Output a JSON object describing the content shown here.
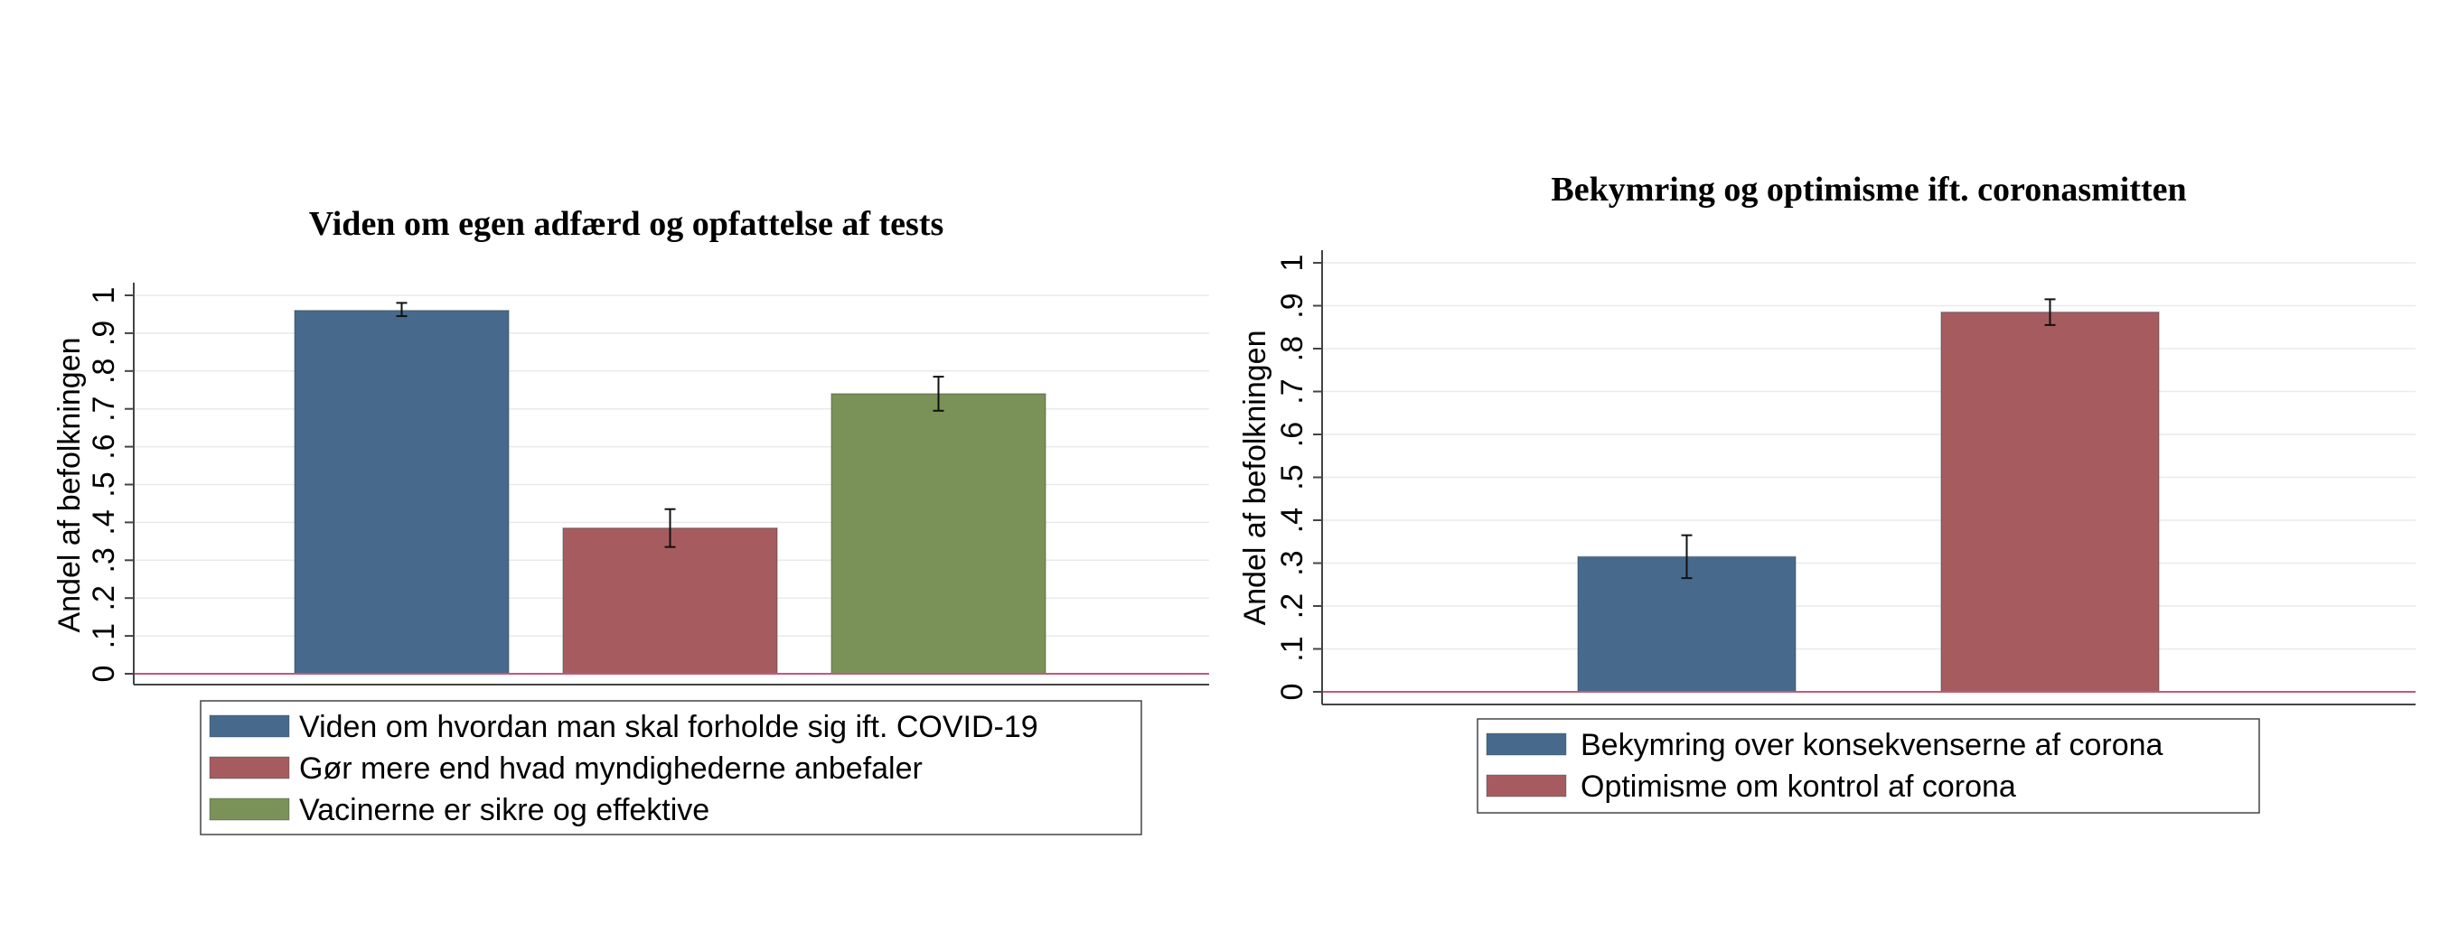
{
  "chart_data": [
    {
      "type": "bar",
      "title": "Viden om egen adfærd og opfattelse af tests",
      "ylabel": "Andel af befolkningen",
      "xlabel": "",
      "ylim": [
        0,
        1
      ],
      "yticks": [
        "0",
        ".1",
        ".2",
        ".3",
        ".4",
        ".5",
        ".6",
        ".7",
        ".8",
        ".9",
        "1"
      ],
      "grid": true,
      "legend_position": "bottom",
      "series": [
        {
          "name": "Viden om hvordan man skal forholde sig ift. COVID-19",
          "value": 0.96,
          "ci": [
            0.945,
            0.98
          ],
          "color": "#476A8C"
        },
        {
          "name": "Gør mere end hvad myndighederne anbefaler",
          "value": 0.385,
          "ci": [
            0.335,
            0.435
          ],
          "color": "#A65C5F"
        },
        {
          "name": "Vacinerne er sikre og effektive",
          "value": 0.74,
          "ci": [
            0.695,
            0.785
          ],
          "color": "#7A9158"
        }
      ]
    },
    {
      "type": "bar",
      "title": "Bekymring og optimisme ift. coronasmitten",
      "ylabel": "Andel af befolkningen",
      "xlabel": "",
      "ylim": [
        0,
        1
      ],
      "yticks": [
        "0",
        ".1",
        ".2",
        ".3",
        ".4",
        ".5",
        ".6",
        ".7",
        ".8",
        ".9",
        "1"
      ],
      "grid": true,
      "legend_position": "bottom",
      "series": [
        {
          "name": "Bekymring over konsekvenserne af corona",
          "value": 0.315,
          "ci": [
            0.265,
            0.365
          ],
          "color": "#476A8C"
        },
        {
          "name": "Optimisme om kontrol af corona",
          "value": 0.885,
          "ci": [
            0.855,
            0.915
          ],
          "color": "#A65C5F"
        }
      ]
    }
  ]
}
